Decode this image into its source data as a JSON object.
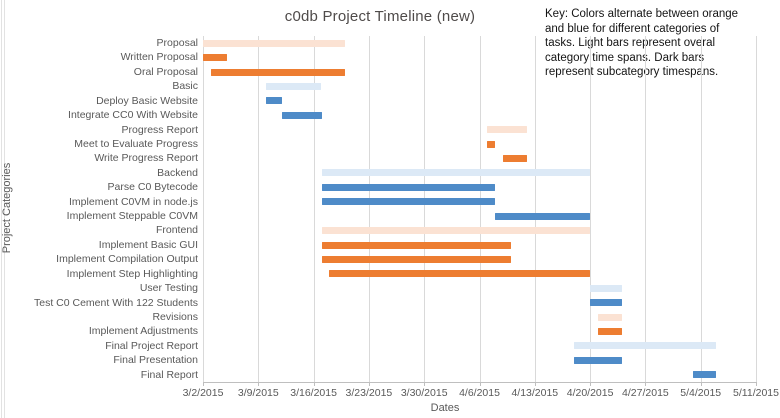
{
  "key_note": {
    "lines": [
      "Key: Colors alternate between orange",
      "and blue for different categories of",
      "tasks. Light bars represent overal",
      "category time spans. Dark bars",
      "represent subcategory timespans."
    ]
  },
  "colors": {
    "light_orange": "#fbe2d3",
    "dark_orange": "#ed7d31",
    "light_blue": "#dce9f6",
    "dark_blue": "#4e8bc8",
    "gridline": "#d9d9d9",
    "axis_text": "#595959"
  },
  "chart_data": {
    "type": "bar",
    "subtype": "gantt",
    "title": "c0db Project Timeline (new)",
    "xlabel": "Dates",
    "ylabel": "Project Categories",
    "grid": "vertical-weekly",
    "legend_position": "none",
    "x_ticks": [
      "3/2/2015",
      "3/9/2015",
      "3/16/2015",
      "3/23/2015",
      "3/30/2015",
      "4/6/2015",
      "4/13/2015",
      "4/20/2015",
      "4/27/2015",
      "5/4/2015",
      "5/11/2015"
    ],
    "x_tick_days": [
      0,
      7,
      14,
      21,
      28,
      35,
      42,
      49,
      56,
      63,
      70
    ],
    "axis_day_range": [
      0,
      70
    ],
    "tasks": [
      {
        "label": "Proposal",
        "shade": "light_orange",
        "start_day": 0,
        "end_day": 18,
        "start": "3/2/2015",
        "end": "3/20/2015"
      },
      {
        "label": "Written Proposal",
        "shade": "dark_orange",
        "start_day": 0,
        "end_day": 3,
        "start": "3/2/2015",
        "end": "3/5/2015"
      },
      {
        "label": "Oral Proposal",
        "shade": "dark_orange",
        "start_day": 1,
        "end_day": 18,
        "start": "3/3/2015",
        "end": "3/20/2015"
      },
      {
        "label": "Basic",
        "shade": "light_blue",
        "start_day": 8,
        "end_day": 15,
        "start": "3/10/2015",
        "end": "3/17/2015"
      },
      {
        "label": "Deploy Basic Website",
        "shade": "dark_blue",
        "start_day": 8,
        "end_day": 10,
        "start": "3/10/2015",
        "end": "3/12/2015"
      },
      {
        "label": "Integrate CC0 With Website",
        "shade": "dark_blue",
        "start_day": 10,
        "end_day": 15,
        "start": "3/12/2015",
        "end": "3/17/2015"
      },
      {
        "label": "Progress Report",
        "shade": "light_orange",
        "start_day": 36,
        "end_day": 41,
        "start": "4/7/2015",
        "end": "4/12/2015"
      },
      {
        "label": "Meet to Evaluate Progress",
        "shade": "dark_orange",
        "start_day": 36,
        "end_day": 37,
        "start": "4/7/2015",
        "end": "4/8/2015"
      },
      {
        "label": "Write Progress Report",
        "shade": "dark_orange",
        "start_day": 38,
        "end_day": 41,
        "start": "4/9/2015",
        "end": "4/12/2015"
      },
      {
        "label": "Backend",
        "shade": "light_blue",
        "start_day": 15,
        "end_day": 49,
        "start": "3/17/2015",
        "end": "4/20/2015"
      },
      {
        "label": "Parse C0 Bytecode",
        "shade": "dark_blue",
        "start_day": 15,
        "end_day": 37,
        "start": "3/17/2015",
        "end": "4/8/2015"
      },
      {
        "label": "Implement C0VM in node.js",
        "shade": "dark_blue",
        "start_day": 15,
        "end_day": 37,
        "start": "3/17/2015",
        "end": "4/8/2015"
      },
      {
        "label": "Implement Steppable C0VM",
        "shade": "dark_blue",
        "start_day": 37,
        "end_day": 49,
        "start": "4/8/2015",
        "end": "4/20/2015"
      },
      {
        "label": "Frontend",
        "shade": "light_orange",
        "start_day": 15,
        "end_day": 49,
        "start": "3/17/2015",
        "end": "4/20/2015"
      },
      {
        "label": "Implement Basic GUI",
        "shade": "dark_orange",
        "start_day": 15,
        "end_day": 39,
        "start": "3/17/2015",
        "end": "4/10/2015"
      },
      {
        "label": "Implement Compilation Output",
        "shade": "dark_orange",
        "start_day": 15,
        "end_day": 39,
        "start": "3/17/2015",
        "end": "4/10/2015"
      },
      {
        "label": "Implement Step Highlighting",
        "shade": "dark_orange",
        "start_day": 16,
        "end_day": 49,
        "start": "3/18/2015",
        "end": "4/20/2015"
      },
      {
        "label": "User Testing",
        "shade": "light_blue",
        "start_day": 49,
        "end_day": 53,
        "start": "4/20/2015",
        "end": "4/24/2015"
      },
      {
        "label": "Test C0 Cement With 122 Students",
        "shade": "dark_blue",
        "start_day": 49,
        "end_day": 53,
        "start": "4/20/2015",
        "end": "4/24/2015"
      },
      {
        "label": "Revisions",
        "shade": "light_orange",
        "start_day": 50,
        "end_day": 53,
        "start": "4/21/2015",
        "end": "4/24/2015"
      },
      {
        "label": "Implement Adjustments",
        "shade": "dark_orange",
        "start_day": 50,
        "end_day": 53,
        "start": "4/21/2015",
        "end": "4/24/2015"
      },
      {
        "label": "Final Project Report",
        "shade": "light_blue",
        "start_day": 47,
        "end_day": 65,
        "start": "4/18/2015",
        "end": "5/6/2015"
      },
      {
        "label": "Final Presentation",
        "shade": "dark_blue",
        "start_day": 47,
        "end_day": 53,
        "start": "4/18/2015",
        "end": "4/24/2015"
      },
      {
        "label": "Final Report",
        "shade": "dark_blue",
        "start_day": 62,
        "end_day": 65,
        "start": "5/3/2015",
        "end": "5/6/2015"
      }
    ]
  }
}
